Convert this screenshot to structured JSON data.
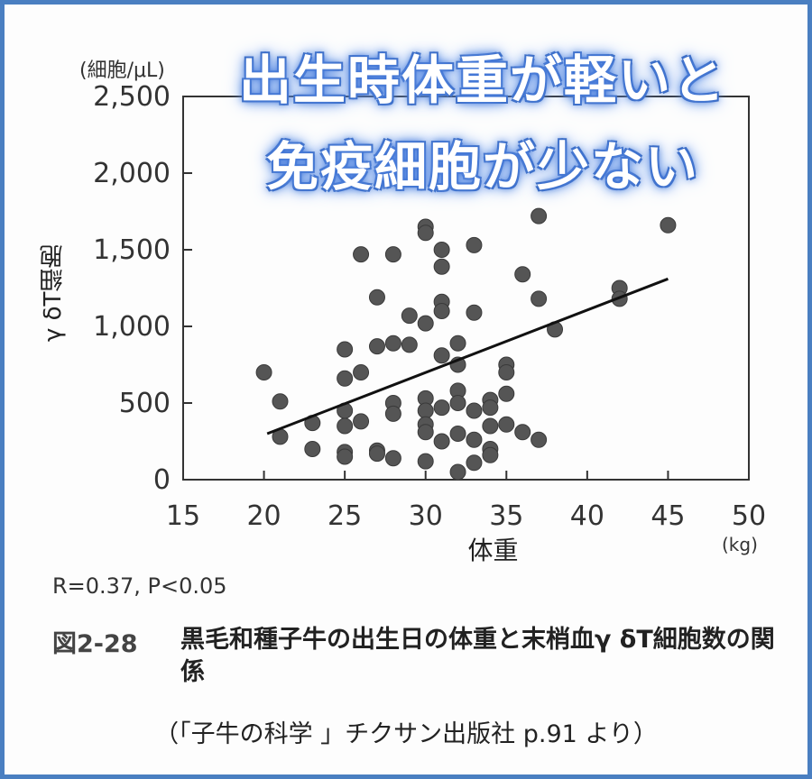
{
  "headline": {
    "line1": "出生時体重が軽いと",
    "line2": "免疫細胞が少ない"
  },
  "chart_data": {
    "type": "scatter",
    "xlabel": "体重",
    "x_unit": "(kg)",
    "ylabel": "γ δT細胞",
    "y_unit": "(細胞/μL)",
    "xlim": [
      15,
      50
    ],
    "ylim": [
      0,
      2500
    ],
    "x_ticks": [
      "15",
      "20",
      "25",
      "30",
      "35",
      "40",
      "45",
      "50"
    ],
    "y_ticks": [
      "0",
      "500",
      "1,000",
      "1,500",
      "2,000",
      "2,500"
    ],
    "grid": false,
    "regression_line": {
      "x1": 20.2,
      "y1": 300,
      "x2": 45,
      "y2": 1310
    },
    "points": [
      [
        20,
        700
      ],
      [
        21,
        510
      ],
      [
        21,
        280
      ],
      [
        23,
        370
      ],
      [
        23,
        200
      ],
      [
        25,
        850
      ],
      [
        25,
        660
      ],
      [
        25,
        450
      ],
      [
        25,
        350
      ],
      [
        25,
        180
      ],
      [
        25,
        150
      ],
      [
        26,
        1470
      ],
      [
        26,
        700
      ],
      [
        26,
        380
      ],
      [
        27,
        1190
      ],
      [
        27,
        870
      ],
      [
        27,
        190
      ],
      [
        27,
        170
      ],
      [
        28,
        1470
      ],
      [
        28,
        890
      ],
      [
        28,
        500
      ],
      [
        28,
        430
      ],
      [
        28,
        140
      ],
      [
        29,
        1070
      ],
      [
        29,
        880
      ],
      [
        30,
        1650
      ],
      [
        30,
        1610
      ],
      [
        30,
        1020
      ],
      [
        30,
        530
      ],
      [
        30,
        450
      ],
      [
        30,
        360
      ],
      [
        30,
        310
      ],
      [
        30,
        120
      ],
      [
        31,
        1500
      ],
      [
        31,
        1390
      ],
      [
        31,
        1160
      ],
      [
        31,
        1100
      ],
      [
        31,
        810
      ],
      [
        31,
        470
      ],
      [
        31,
        250
      ],
      [
        32,
        890
      ],
      [
        32,
        750
      ],
      [
        32,
        580
      ],
      [
        32,
        500
      ],
      [
        32,
        300
      ],
      [
        32,
        50
      ],
      [
        33,
        1530
      ],
      [
        33,
        1090
      ],
      [
        33,
        450
      ],
      [
        33,
        260
      ],
      [
        33,
        110
      ],
      [
        34,
        520
      ],
      [
        34,
        470
      ],
      [
        34,
        350
      ],
      [
        34,
        200
      ],
      [
        34,
        160
      ],
      [
        35,
        750
      ],
      [
        35,
        700
      ],
      [
        35,
        560
      ],
      [
        35,
        360
      ],
      [
        36,
        1340
      ],
      [
        36,
        310
      ],
      [
        37,
        1720
      ],
      [
        37,
        1180
      ],
      [
        37,
        260
      ],
      [
        38,
        980
      ],
      [
        42,
        1250
      ],
      [
        42,
        1180
      ],
      [
        45,
        1660
      ]
    ]
  },
  "stats": "R=0.37, P<0.05",
  "figure": {
    "number": "図2-28",
    "caption": "黒毛和種子牛の出生日の体重と末梢血γ δT細胞数の関係"
  },
  "source": "（「子牛の科学 」チクサン出版社 p.91 より）"
}
